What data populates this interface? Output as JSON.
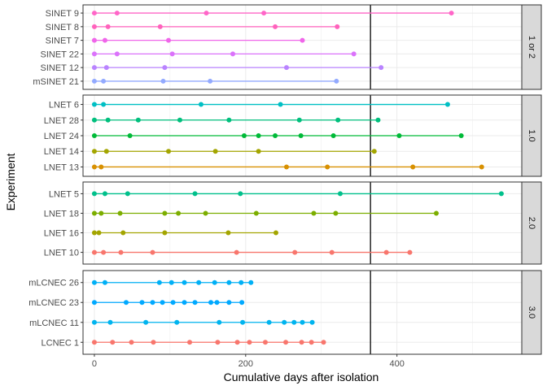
{
  "chart_data": {
    "type": "dot-line",
    "xlabel": "Cumulative days after isolation",
    "ylabel": "Experiment",
    "x_ticks": [
      0,
      200,
      400
    ],
    "xlim": [
      -15,
      565
    ],
    "reference_line_x": 365,
    "grid": true,
    "panels": [
      {
        "strip": "1 or 2",
        "rows": [
          {
            "label": "SINET 9",
            "color": "#FF66C8",
            "x": [
              0,
              30,
              148,
              224,
              472
            ]
          },
          {
            "label": "SINET 8",
            "color": "#FF62BC",
            "x": [
              0,
              18,
              87,
              239,
              321
            ]
          },
          {
            "label": "SINET 7",
            "color": "#F066EA",
            "x": [
              0,
              14,
              98,
              275
            ]
          },
          {
            "label": "SINET 22",
            "color": "#DB72FB",
            "x": [
              0,
              30,
              103,
              183,
              343
            ]
          },
          {
            "label": "SINET 12",
            "color": "#B983FF",
            "x": [
              0,
              16,
              93,
              254,
              379
            ]
          },
          {
            "label": "mSINET 21",
            "color": "#93AAFF",
            "x": [
              0,
              12,
              91,
              153,
              320
            ]
          }
        ]
      },
      {
        "strip": "1.0",
        "rows": [
          {
            "label": "LNET 6",
            "color": "#00BFC4",
            "x": [
              0,
              12,
              141,
              246,
              467
            ]
          },
          {
            "label": "LNET 28",
            "color": "#00BF7D",
            "x": [
              0,
              18,
              58,
              113,
              178,
              271,
              322,
              375
            ]
          },
          {
            "label": "LNET 24",
            "color": "#00BA38",
            "x": [
              0,
              47,
              198,
              217,
              239,
              273,
              316,
              403,
              485
            ]
          },
          {
            "label": "LNET 14",
            "color": "#A3A500",
            "x": [
              0,
              16,
              98,
              160,
              217,
              370
            ]
          },
          {
            "label": "LNET 13",
            "color": "#D89000",
            "x": [
              0,
              9,
              254,
              308,
              421,
              512
            ]
          }
        ]
      },
      {
        "strip": "2.0",
        "rows": [
          {
            "label": "LNET 5",
            "color": "#00C08B",
            "x": [
              0,
              14,
              44,
              133,
              193,
              325,
              538
            ]
          },
          {
            "label": "LNET 18",
            "color": "#7CAE00",
            "x": [
              0,
              9,
              34,
              93,
              111,
              147,
              214,
              290,
              319,
              452
            ]
          },
          {
            "label": "LNET 16",
            "color": "#A3A500",
            "x": [
              0,
              6,
              38,
              93,
              177,
              240
            ]
          },
          {
            "label": "LNET 10",
            "color": "#F8766D",
            "x": [
              0,
              12,
              35,
              77,
              188,
              265,
              314,
              386,
              417
            ]
          }
        ]
      },
      {
        "strip": "3.0",
        "rows": [
          {
            "label": "mLCNEC 26",
            "color": "#00B0F6",
            "x": [
              0,
              14,
              86,
              102,
              119,
              138,
              159,
              178,
              194,
              207
            ]
          },
          {
            "label": "mLCNEC 23",
            "color": "#00A9FF",
            "x": [
              0,
              42,
              63,
              77,
              90,
              104,
              119,
              133,
              154,
              162,
              178,
              195
            ]
          },
          {
            "label": "mLCNEC 11",
            "color": "#00B4EF",
            "x": [
              0,
              21,
              68,
              109,
              165,
              196,
              231,
              251,
              264,
              275,
              288
            ]
          },
          {
            "label": "LCNEC 1",
            "color": "#F8766D",
            "x": [
              0,
              24,
              49,
              78,
              126,
              163,
              189,
              205,
              226,
              253,
              274,
              287,
              303
            ]
          }
        ]
      }
    ]
  }
}
